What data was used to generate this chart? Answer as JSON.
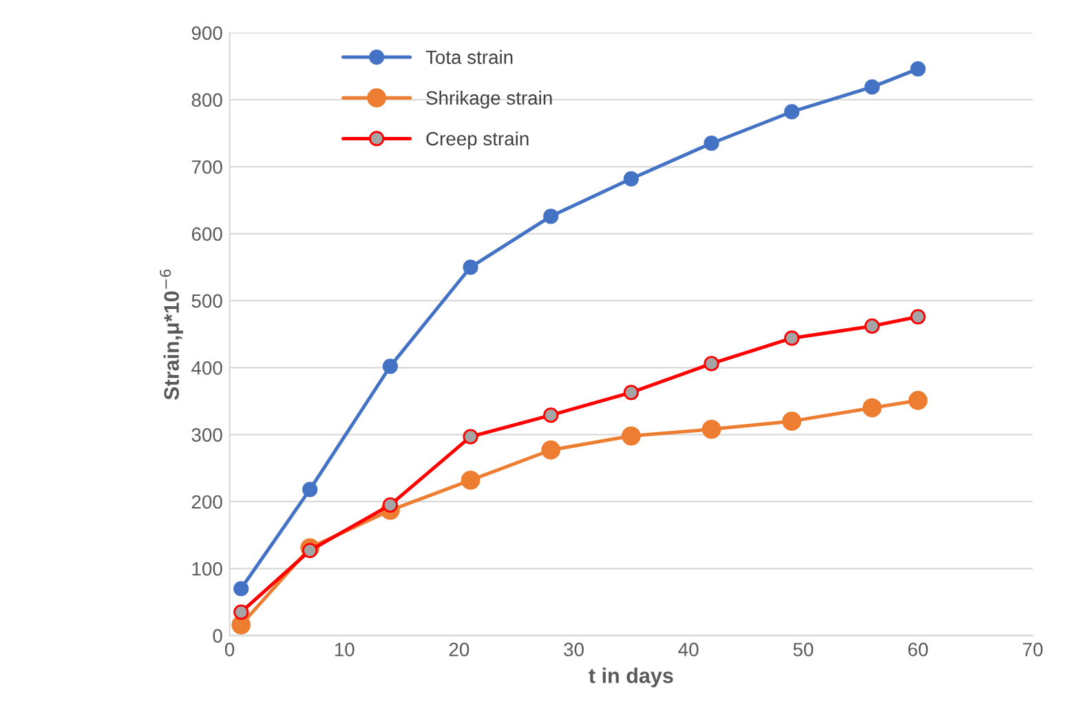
{
  "chart_data": {
    "type": "line",
    "xlabel": "t in days",
    "ylabel": "Strain,μ*10$^{−6}$",
    "x": [
      1,
      7,
      14,
      21,
      28,
      35,
      42,
      49,
      56,
      60
    ],
    "series": [
      {
        "name": "Tota strain",
        "color": "#4472c4",
        "values": [
          70,
          218,
          402,
          550,
          626,
          682,
          735,
          782,
          819,
          846
        ]
      },
      {
        "name": "Shrikage strain",
        "color": "#ed7d31",
        "values": [
          16,
          131,
          187,
          232,
          277,
          298,
          308,
          320,
          340,
          351
        ]
      },
      {
        "name": "Creep strain",
        "color": "#ff0000",
        "values": [
          35,
          127,
          195,
          297,
          329,
          363,
          406,
          444,
          462,
          476
        ]
      }
    ],
    "xlim": [
      0,
      70
    ],
    "xticks": [
      0,
      10,
      20,
      30,
      40,
      50,
      60,
      70
    ],
    "ylim": [
      0,
      900
    ],
    "yticks": [
      0,
      100,
      200,
      300,
      400,
      500,
      600,
      700,
      800,
      900
    ],
    "grid": "y",
    "legend": "top left",
    "marker": "circle",
    "line_style": "solid"
  }
}
